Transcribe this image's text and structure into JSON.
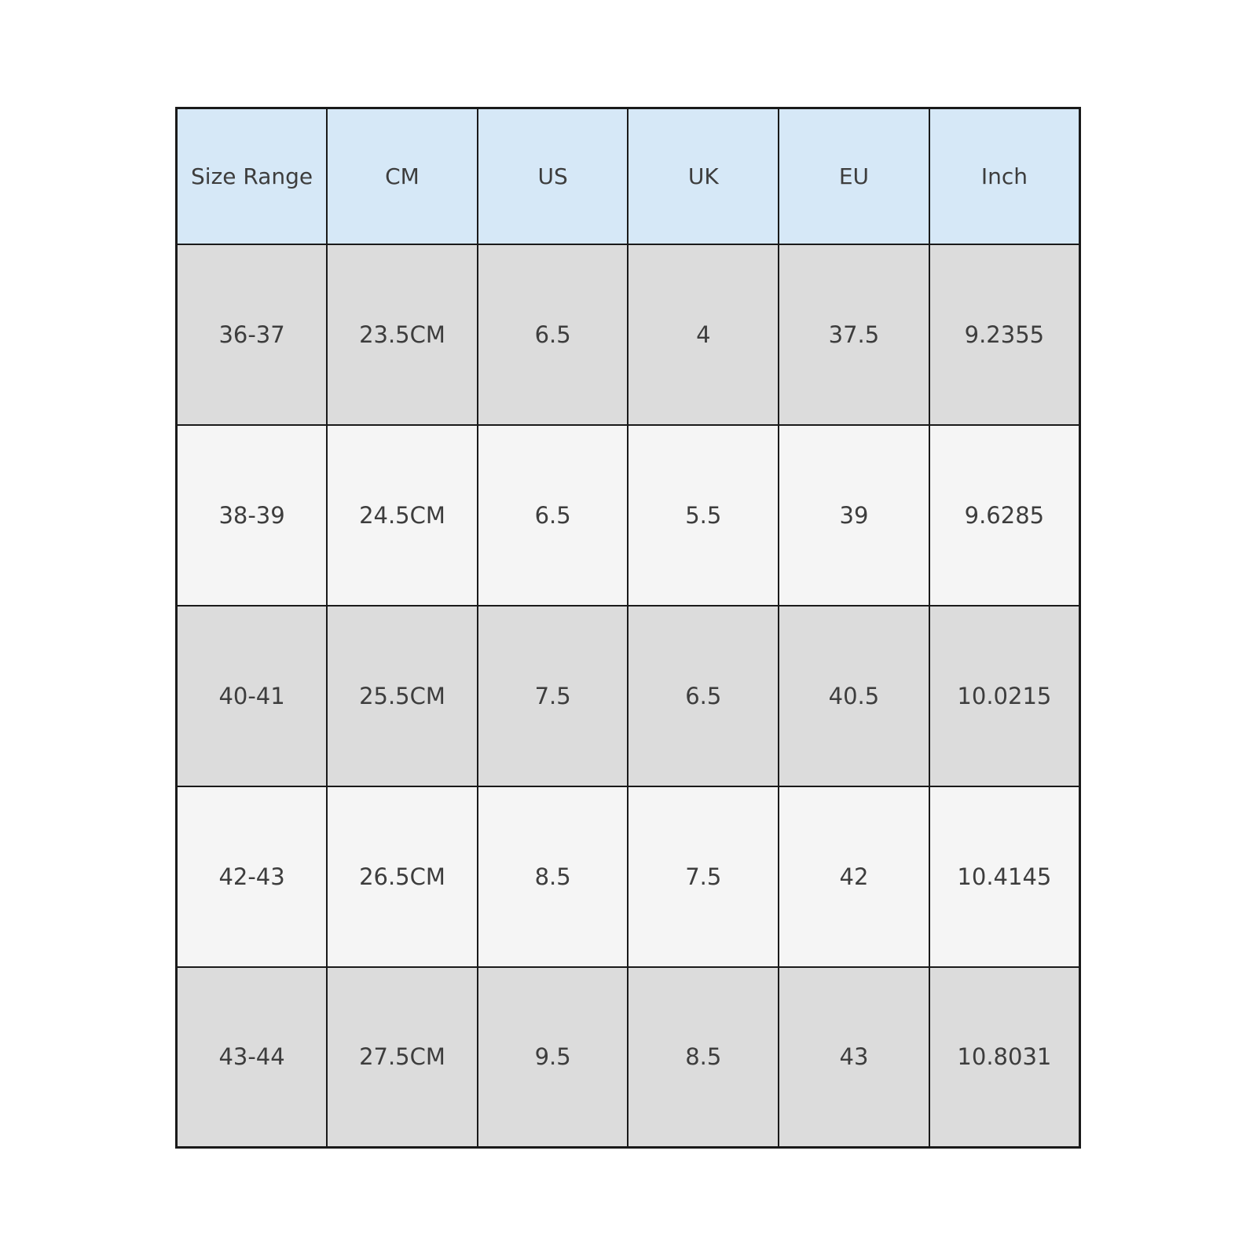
{
  "chart_data": {
    "type": "table",
    "columns": [
      "Size Range",
      "CM",
      "US",
      "UK",
      "EU",
      "Inch"
    ],
    "rows": [
      [
        "36-37",
        "23.5CM",
        "6.5",
        "4",
        "37.5",
        "9.2355"
      ],
      [
        "38-39",
        "24.5CM",
        "6.5",
        "5.5",
        "39",
        "9.6285"
      ],
      [
        "40-41",
        "25.5CM",
        "7.5",
        "6.5",
        "40.5",
        "10.0215"
      ],
      [
        "42-43",
        "26.5CM",
        "8.5",
        "7.5",
        "42",
        "10.4145"
      ],
      [
        "43-44",
        "27.5CM",
        "9.5",
        "8.5",
        "43",
        "10.8031"
      ]
    ],
    "title": "",
    "layout_hints": {
      "header_position": "top",
      "row_striping": "alternating",
      "grid": true
    }
  },
  "colors": {
    "header_bg": "#d6e8f7",
    "row_stripe_gray": "#dcdcdc",
    "row_stripe_light": "#f5f5f5",
    "border": "#1a1a1a",
    "text": "#3d3d3d",
    "page_bg": "#ffffff"
  }
}
